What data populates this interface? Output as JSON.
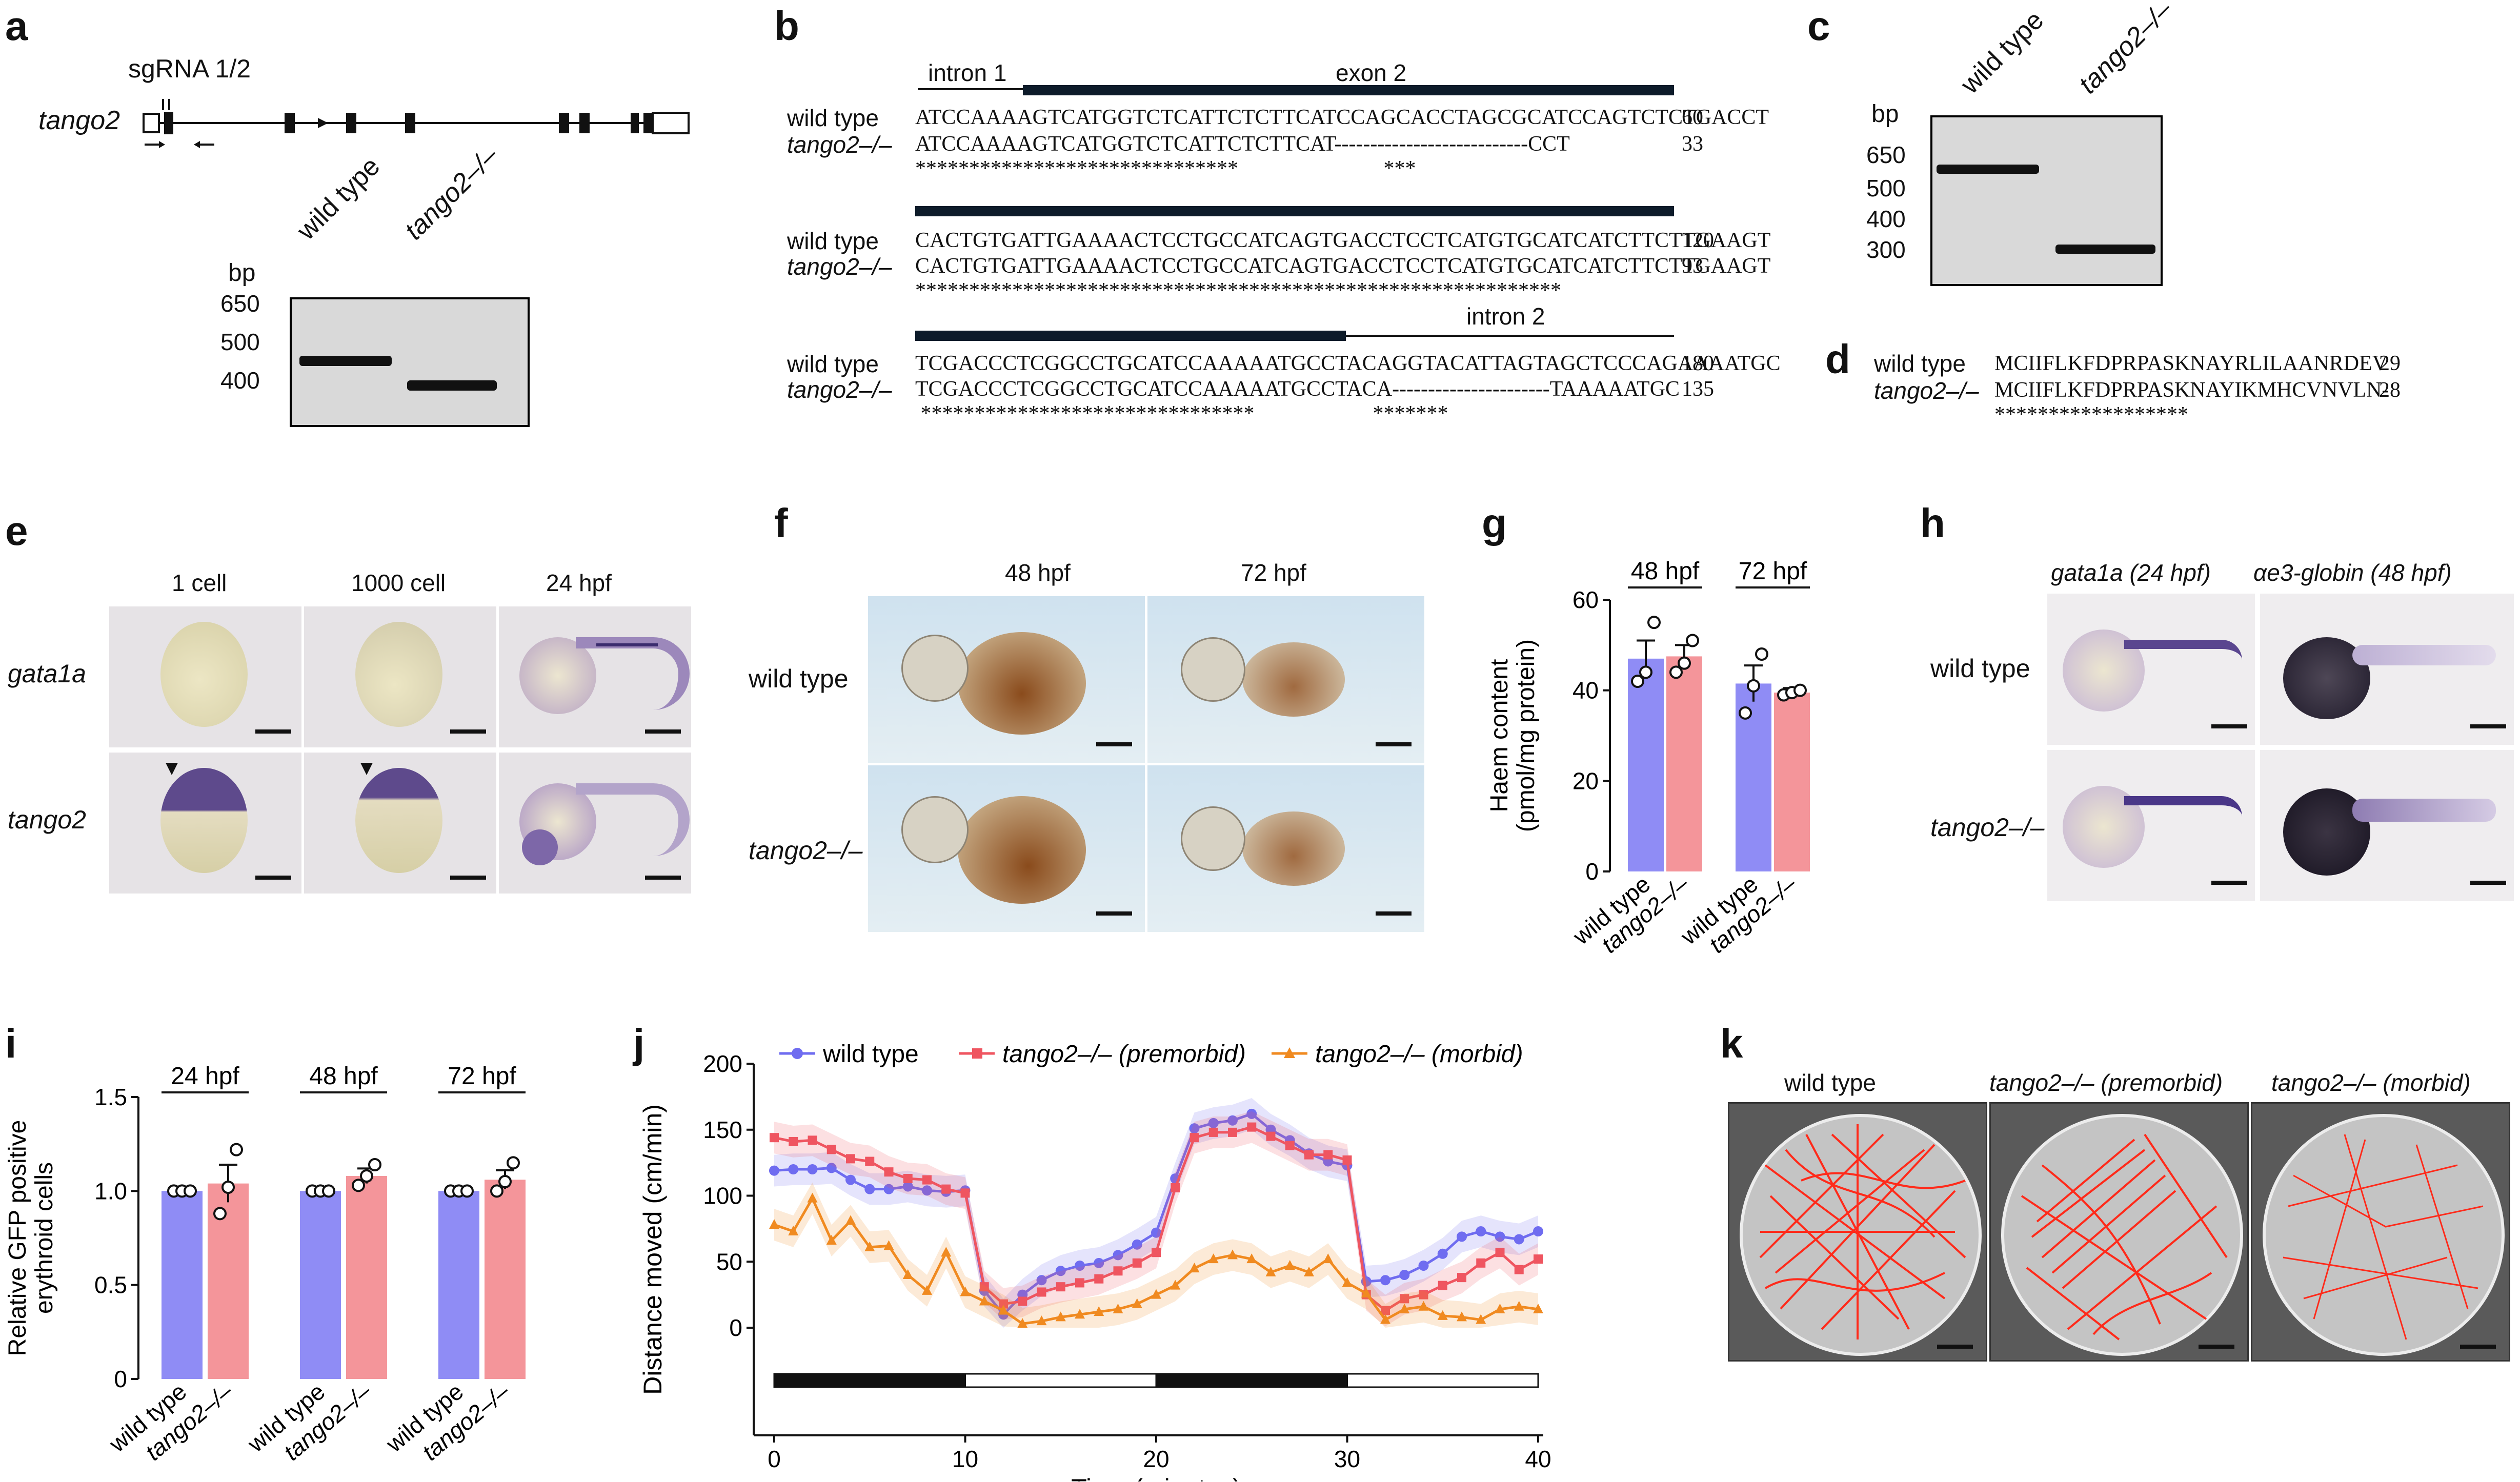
{
  "panels": {
    "a": {
      "label": "a",
      "gene": "tango2",
      "sgrna": "sgRNA 1/2",
      "gel_unit": "bp",
      "gel_ladder": [
        "650",
        "500",
        "400"
      ],
      "lanes": [
        "wild type",
        "tango2–/–"
      ]
    },
    "b": {
      "label": "b",
      "blocks": [
        {
          "headers": [
            "intron 1",
            "exon 2"
          ],
          "rows": [
            {
              "name": "wild type",
              "seq": "ATCCAAAAGTCATGGTCTCATTCTCTTCATCCAGCACCTAGCGCATCCAGTCTCTGACCT",
              "num": "60"
            },
            {
              "name": "tango2–/–",
              "seq": "ATCCAAAAGTCATGGTCTCATTCTCTTCAT---------------------------CCT",
              "num": "33"
            }
          ],
          "stars": "******************************                           ***"
        },
        {
          "headers": [],
          "rows": [
            {
              "name": "wild type",
              "seq": "CACTGTGATTGAAAACTCCTGCCATCAGTGACCTCCTCATGTGCATCATCTTCTTGAAGT",
              "num": "120"
            },
            {
              "name": "tango2–/–",
              "seq": "CACTGTGATTGAAAACTCCTGCCATCAGTGACCTCCTCATGTGCATCATCTTCTTGAAGT",
              "num": "93"
            }
          ],
          "stars": "************************************************************"
        },
        {
          "headers": [
            "intron 2"
          ],
          "rows": [
            {
              "name": "wild type",
              "seq": "TCGACCCTCGGCCTGCATCCAAAAATGCCTACAGGTACATTAGTAGCTCCCAGAAAATGC",
              "num": "180"
            },
            {
              "name": "tango2–/–",
              "seq": "TCGACCCTCGGCCTGCATCCAAAAATGCCTACA----------------------TAAAAATGC",
              "num": "135"
            }
          ],
          "stars": " *******************************                      *******"
        }
      ]
    },
    "c": {
      "label": "c",
      "gel_unit": "bp",
      "gel_ladder": [
        "650",
        "500",
        "400",
        "300"
      ],
      "lanes": [
        "wild type",
        "tango2–/–"
      ]
    },
    "d": {
      "label": "d",
      "rows": [
        {
          "name": "wild type",
          "seq": "MCIIFLKFDPRPASKNAYRLILAANRDEV",
          "num": "29"
        },
        {
          "name": "tango2–/–",
          "seq": "MCIIFLKFDPRPASKNAYIKMHCVNVLN-",
          "num": "28"
        }
      ],
      "stars": "******************"
    },
    "e": {
      "label": "e",
      "columns": [
        "1 cell",
        "1000 cell",
        "24 hpf"
      ],
      "rows": [
        "gata1a",
        "tango2"
      ]
    },
    "f": {
      "label": "f",
      "columns": [
        "48 hpf",
        "72 hpf"
      ],
      "rows": [
        "wild type",
        "tango2–/–"
      ]
    },
    "h": {
      "label": "h",
      "columns": [
        "gata1a (24 hpf)",
        "αe3-globin (48 hpf)"
      ],
      "rows": [
        "wild type",
        "tango2–/–"
      ]
    },
    "k": {
      "label": "k",
      "columns": [
        "wild type",
        "tango2–/– (premorbid)",
        "tango2–/– (morbid)"
      ]
    }
  },
  "chart_data": [
    {
      "panel": "g",
      "type": "bar",
      "groups": [
        "48 hpf",
        "72 hpf"
      ],
      "categories": [
        "wild type",
        "tango2–/–",
        "wild type",
        "tango2–/–"
      ],
      "values": [
        47,
        47.5,
        41.5,
        39.5
      ],
      "errors": [
        4,
        2.5,
        4,
        1
      ],
      "points": [
        [
          42,
          44,
          55
        ],
        [
          44,
          46,
          51
        ],
        [
          35,
          41,
          48
        ],
        [
          39,
          39.5,
          40
        ]
      ],
      "colors": [
        "#8f8cf5",
        "#f4959a",
        "#8f8cf5",
        "#f4959a"
      ],
      "ylabel": "Haem content\n(pmol/mg protein)",
      "ylim": [
        0,
        60
      ],
      "yticks": [
        "0",
        "20",
        "40",
        "60"
      ]
    },
    {
      "panel": "i",
      "type": "bar",
      "groups": [
        "24 hpf",
        "48 hpf",
        "72 hpf"
      ],
      "categories": [
        "wild type",
        "tango2–/–",
        "wild type",
        "tango2–/–",
        "wild type",
        "tango2–/–"
      ],
      "values": [
        1.0,
        1.04,
        1.0,
        1.08,
        1.0,
        1.06
      ],
      "errors": [
        0,
        0.1,
        0,
        0.04,
        0,
        0.05
      ],
      "points": [
        [
          1,
          1,
          1
        ],
        [
          0.88,
          1.02,
          1.22
        ],
        [
          1,
          1,
          1
        ],
        [
          1.03,
          1.08,
          1.14
        ],
        [
          1,
          1,
          1
        ],
        [
          1.0,
          1.05,
          1.15
        ]
      ],
      "colors": [
        "#8f8cf5",
        "#f4959a",
        "#8f8cf5",
        "#f4959a",
        "#8f8cf5",
        "#f4959a"
      ],
      "ylabel": "Relative GFP positive\nerythroid cells",
      "ylim": [
        0,
        1.5
      ],
      "yticks": [
        "0",
        "0.5",
        "1.0",
        "1.5"
      ]
    },
    {
      "panel": "j",
      "type": "line",
      "title": "",
      "xlabel": "Time (minutes)",
      "ylabel": "Distance moved (cm/min)",
      "xlim": [
        0,
        40
      ],
      "ylim": [
        0,
        200
      ],
      "xticks": [
        "0",
        "10",
        "20",
        "30",
        "40"
      ],
      "yticks": [
        "0",
        "50",
        "100",
        "150",
        "200"
      ],
      "x": [
        0,
        1,
        2,
        3,
        4,
        5,
        6,
        7,
        8,
        9,
        10,
        11,
        12,
        13,
        14,
        15,
        16,
        17,
        18,
        19,
        20,
        21,
        22,
        23,
        24,
        25,
        26,
        27,
        28,
        29,
        30,
        31,
        32,
        33,
        34,
        35,
        36,
        37,
        38,
        39,
        40
      ],
      "series": [
        {
          "name": "wild type",
          "color": "#6f6cf0",
          "marker": "circle",
          "values": [
            119,
            120,
            120,
            121,
            112,
            105,
            105,
            107,
            104,
            103,
            104,
            28,
            10,
            25,
            36,
            43,
            47,
            49,
            55,
            63,
            72,
            113,
            151,
            155,
            157,
            162,
            150,
            142,
            132,
            126,
            123,
            35,
            36,
            40,
            47,
            56,
            69,
            73,
            69,
            67,
            73
          ]
        },
        {
          "name": "tango2–/– (premorbid)",
          "color": "#ef5560",
          "marker": "square",
          "values": [
            144,
            141,
            142,
            135,
            128,
            126,
            118,
            113,
            112,
            105,
            102,
            31,
            18,
            20,
            27,
            31,
            34,
            37,
            43,
            49,
            57,
            106,
            144,
            148,
            148,
            152,
            145,
            138,
            131,
            131,
            127,
            25,
            13,
            22,
            25,
            32,
            38,
            49,
            57,
            44,
            52
          ]
        },
        {
          "name": "tango2–/– (morbid)",
          "color": "#f08a20",
          "marker": "triangle",
          "values": [
            78,
            73,
            98,
            66,
            81,
            61,
            62,
            40,
            28,
            57,
            27,
            20,
            13,
            3,
            5,
            8,
            10,
            12,
            14,
            18,
            25,
            32,
            45,
            52,
            55,
            52,
            42,
            47,
            42,
            52,
            34,
            26,
            6,
            14,
            16,
            9,
            8,
            6,
            14,
            16,
            14
          ]
        }
      ],
      "light_bar": [
        "dark",
        "light",
        "dark",
        "light"
      ]
    }
  ]
}
